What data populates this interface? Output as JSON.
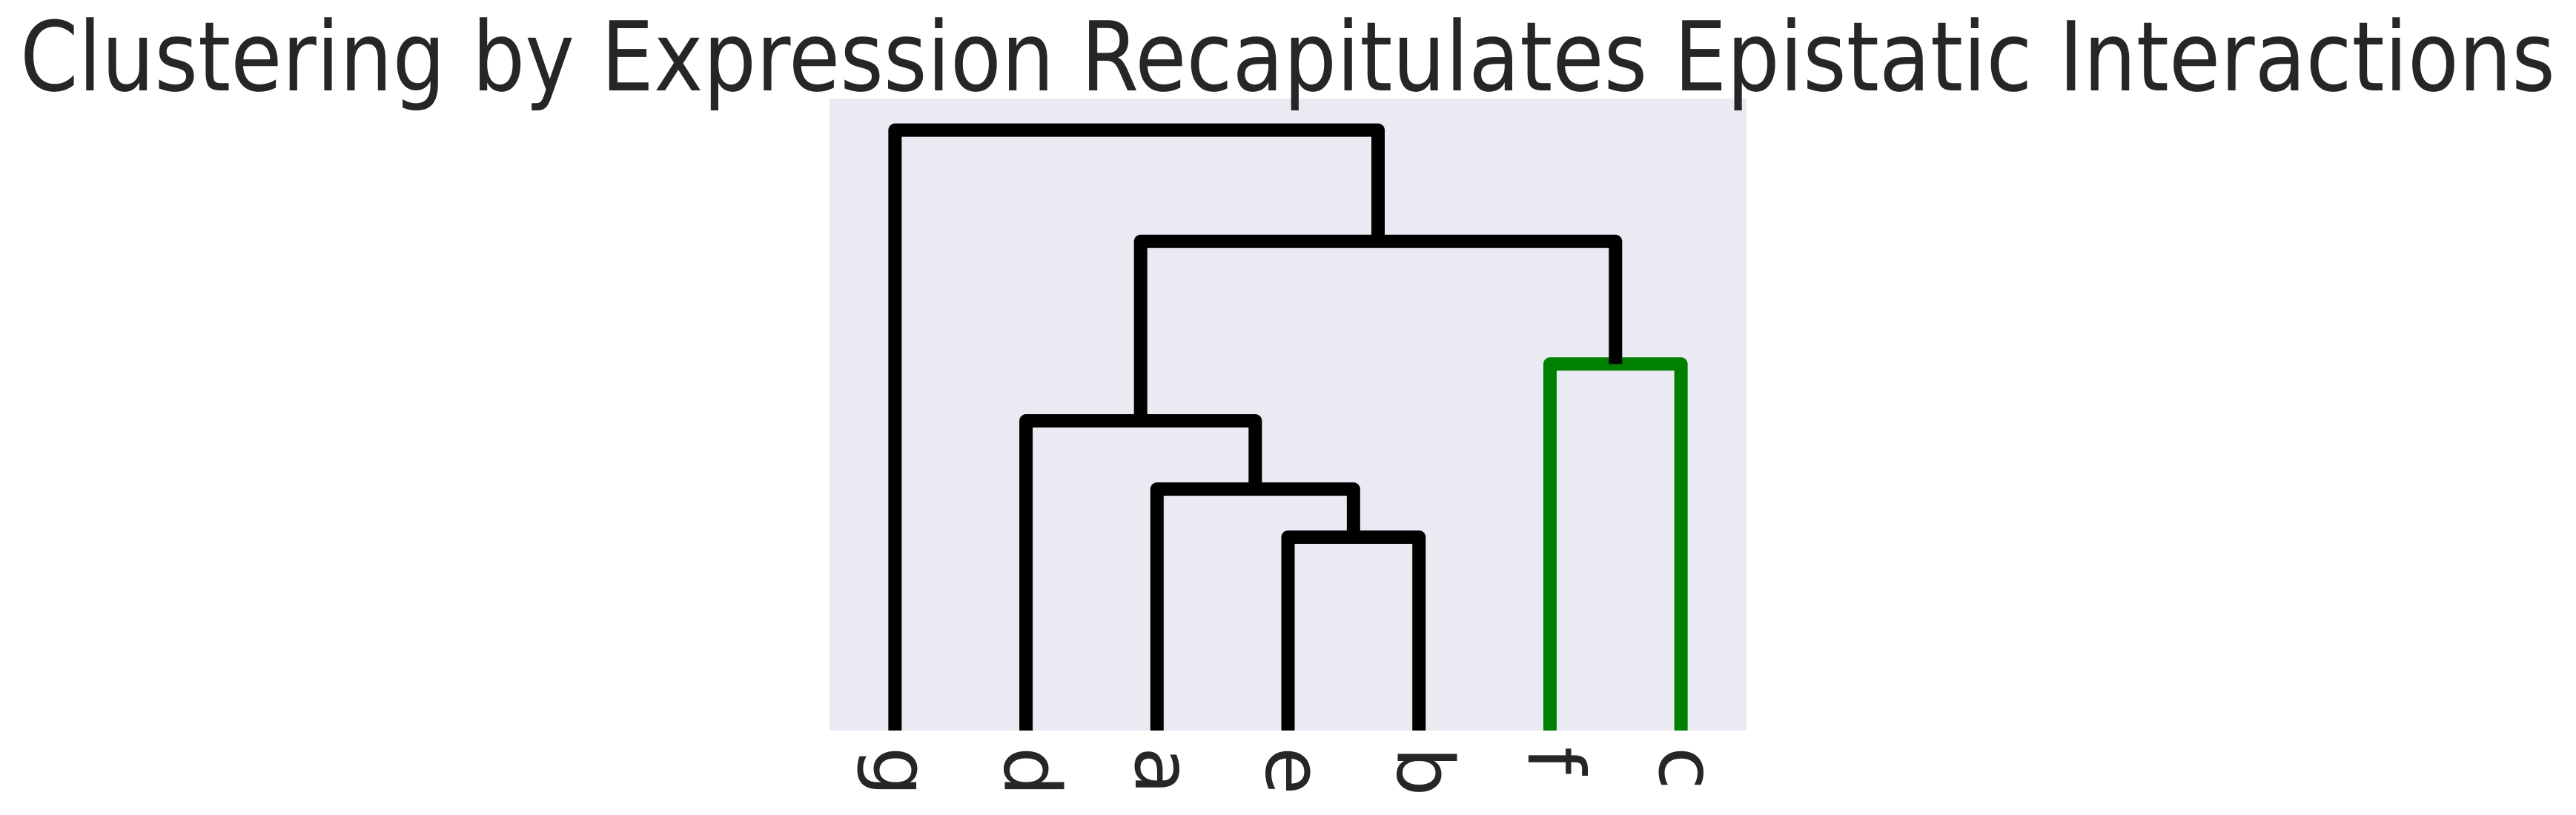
{
  "chart_data": {
    "type": "dendrogram",
    "title": "Clustering by Expression Recapitulates Epistatic Interactions",
    "leaves": [
      "g",
      "d",
      "a",
      "e",
      "b",
      "f",
      "c"
    ],
    "links": [
      {
        "children": [
          3,
          4
        ],
        "height": 0.306,
        "color": "#000000"
      },
      {
        "children": [
          2,
          7
        ],
        "height": 0.382,
        "color": "#000000"
      },
      {
        "children": [
          1,
          8
        ],
        "height": 0.49,
        "color": "#000000"
      },
      {
        "children": [
          5,
          6
        ],
        "height": 0.58,
        "color": "#008000"
      },
      {
        "children": [
          9,
          10
        ],
        "height": 0.774,
        "color": "#000000"
      },
      {
        "children": [
          0,
          11
        ],
        "height": 0.95,
        "color": "#000000"
      }
    ],
    "ylim": [
      0,
      1
    ],
    "background": "#eaeaf2"
  }
}
